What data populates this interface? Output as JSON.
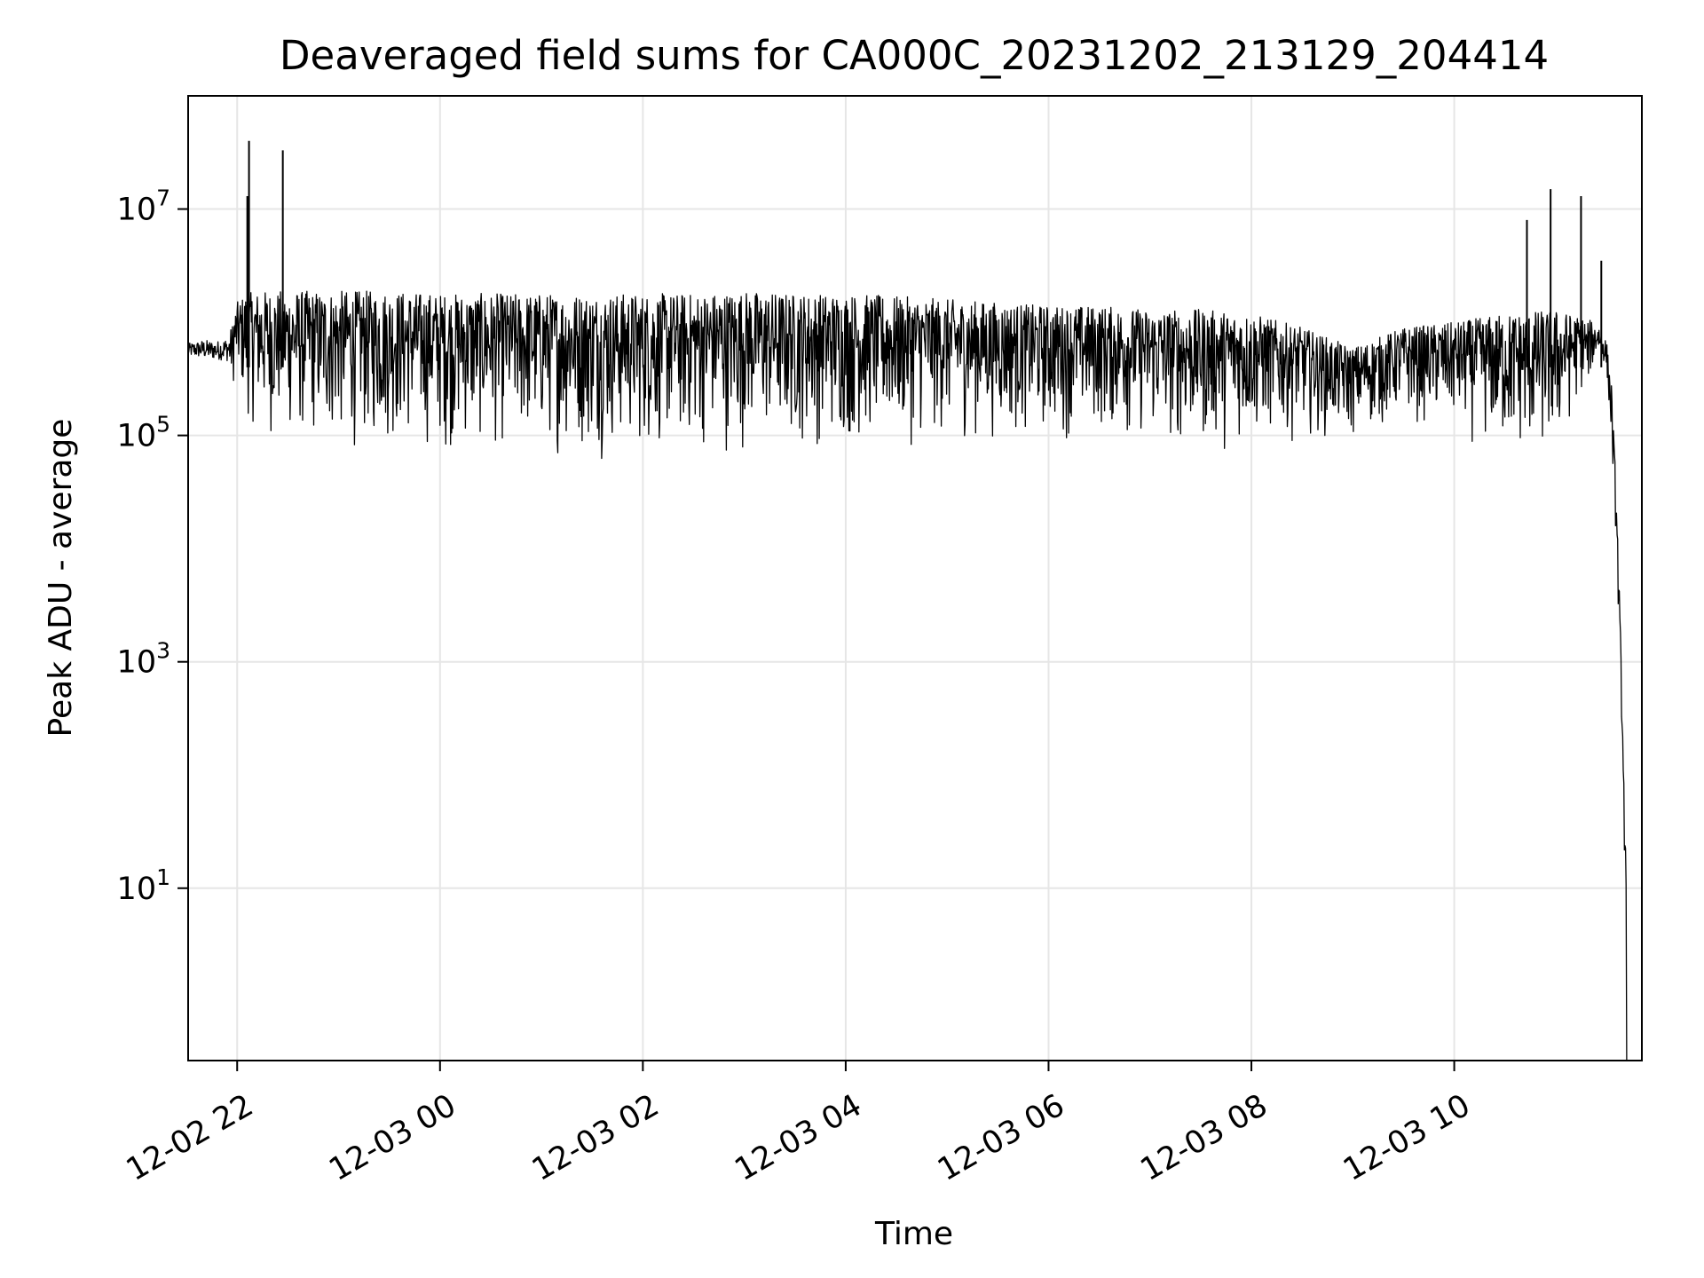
{
  "chart_data": {
    "type": "line",
    "title": "Deaveraged field sums for CA000C_20231202_213129_204414",
    "xlabel": "Time",
    "ylabel": "Peak ADU - average",
    "x_range": [
      "2023-12-02 21:31",
      "2023-12-03 11:51"
    ],
    "yscale": "log",
    "ylim": [
      0.3,
      100000000
    ],
    "grid": true,
    "legend": "none",
    "line_color": "#000000",
    "x_ticks": [
      {
        "value": "2023-12-02 22:00",
        "label": "12-02 22"
      },
      {
        "value": "2023-12-03 00:00",
        "label": "12-03 00"
      },
      {
        "value": "2023-12-03 02:00",
        "label": "12-03 02"
      },
      {
        "value": "2023-12-03 04:00",
        "label": "12-03 04"
      },
      {
        "value": "2023-12-03 06:00",
        "label": "12-03 06"
      },
      {
        "value": "2023-12-03 08:00",
        "label": "12-03 08"
      },
      {
        "value": "2023-12-03 10:00",
        "label": "12-03 10"
      }
    ],
    "y_ticks": [
      {
        "value": 10,
        "base": "10",
        "exp": "1"
      },
      {
        "value": 1000,
        "base": "10",
        "exp": "3"
      },
      {
        "value": 100000,
        "base": "10",
        "exp": "5"
      },
      {
        "value": 10000000,
        "base": "10",
        "exp": "7"
      }
    ],
    "series": [
      {
        "x": [
          "2023-12-02 21:31",
          "2023-12-02 21:40",
          "2023-12-02 21:48",
          "2023-12-02 21:55",
          "2023-12-02 22:00",
          "2023-12-02 22:05",
          "2023-12-02 22:15",
          "2023-12-02 22:30",
          "2023-12-02 23:00",
          "2023-12-02 23:30",
          "2023-12-03 00:00",
          "2023-12-03 00:30",
          "2023-12-03 01:00",
          "2023-12-03 01:30",
          "2023-12-03 02:00",
          "2023-12-03 02:30",
          "2023-12-03 03:00",
          "2023-12-03 03:30",
          "2023-12-03 04:00",
          "2023-12-03 04:30",
          "2023-12-03 05:00",
          "2023-12-03 05:30",
          "2023-12-03 06:00",
          "2023-12-03 06:30",
          "2023-12-03 07:00",
          "2023-12-03 07:30",
          "2023-12-03 08:00",
          "2023-12-03 08:30",
          "2023-12-03 09:00",
          "2023-12-03 09:30",
          "2023-12-03 10:00",
          "2023-12-03 10:30",
          "2023-12-03 11:00",
          "2023-12-03 11:15",
          "2023-12-03 11:25",
          "2023-12-03 11:30",
          "2023-12-03 11:33",
          "2023-12-03 11:36",
          "2023-12-03 11:38",
          "2023-12-03 11:40",
          "2023-12-03 11:42"
        ],
        "y_low": [
          500000,
          480000,
          470000,
          450000,
          220000,
          120000,
          80000,
          70000,
          60000,
          65000,
          60000,
          60000,
          58000,
          55000,
          55000,
          58000,
          62000,
          65000,
          65000,
          68000,
          75000,
          80000,
          80000,
          85000,
          70000,
          60000,
          70000,
          90000,
          80000,
          120000,
          90000,
          50000,
          45000,
          200000,
          600000,
          400000,
          100000,
          10000,
          1000,
          100,
          0.6
        ],
        "y_high": [
          650000,
          700000,
          680000,
          750000,
          1500000,
          1800000,
          1900000,
          1900000,
          1900000,
          1900000,
          1800000,
          1800000,
          1800000,
          1800000,
          1800000,
          1800000,
          1900000,
          1800000,
          1800000,
          1700000,
          1600000,
          1500000,
          1400000,
          1400000,
          1300000,
          1300000,
          1200000,
          900000,
          600000,
          900000,
          1000000,
          1200000,
          1300000,
          1100000,
          1000000,
          700000,
          300000,
          30000,
          3000,
          200,
          8
        ]
      }
    ],
    "spikes": [
      {
        "x": "2023-12-02 22:07",
        "y": 40000000
      },
      {
        "x": "2023-12-02 22:06",
        "y": 13000000
      },
      {
        "x": "2023-12-02 22:27",
        "y": 33000000
      },
      {
        "x": "2023-12-03 10:43",
        "y": 8000000
      },
      {
        "x": "2023-12-03 10:57",
        "y": 15000000
      },
      {
        "x": "2023-12-03 11:15",
        "y": 13000000
      },
      {
        "x": "2023-12-03 11:27",
        "y": 3500000
      }
    ]
  }
}
